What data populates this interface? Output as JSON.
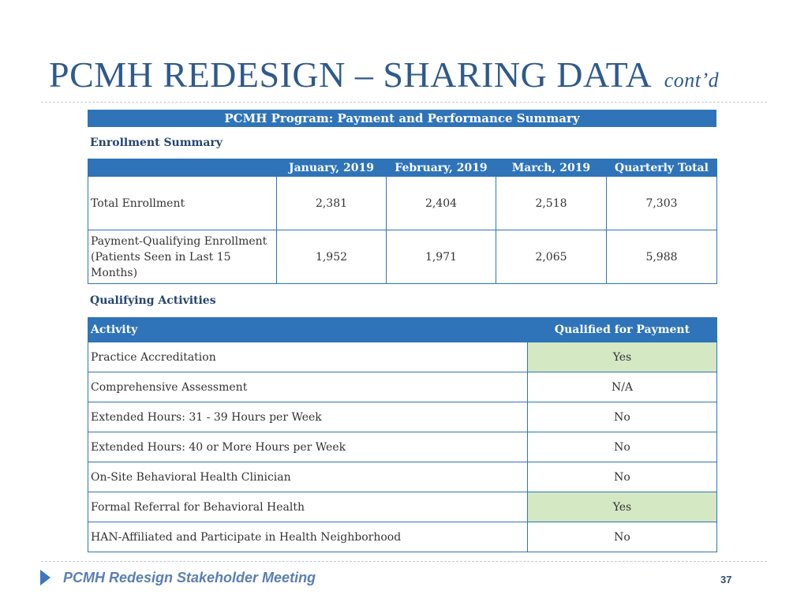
{
  "slide": {
    "title": "PCMH REDESIGN – SHARING DATA",
    "title_suffix": "cont’d",
    "summary_header": "PCMH Program: Payment and Performance Summary"
  },
  "enrollment": {
    "label": "Enrollment Summary",
    "columns": [
      "",
      "January, 2019",
      "February, 2019",
      "March, 2019",
      "Quarterly Total"
    ],
    "rows": [
      {
        "label": "Total Enrollment",
        "values": [
          "2,381",
          "2,404",
          "2,518",
          "7,303"
        ]
      },
      {
        "label": "Payment-Qualifying Enrollment (Patients Seen in Last 15 Months)",
        "values": [
          "1,952",
          "1,971",
          "2,065",
          "5,988"
        ]
      }
    ]
  },
  "qualifying": {
    "label": "Qualifying Activities",
    "columns": [
      "Activity",
      "Qualified for Payment"
    ],
    "rows": [
      {
        "activity": "Practice Accreditation",
        "qualified": "Yes"
      },
      {
        "activity": "Comprehensive Assessment",
        "qualified": "N/A"
      },
      {
        "activity": "Extended Hours: 31 - 39 Hours per Week",
        "qualified": "No"
      },
      {
        "activity": "Extended Hours: 40 or More Hours per Week",
        "qualified": "No"
      },
      {
        "activity": "On-Site Behavioral Health Clinician",
        "qualified": "No"
      },
      {
        "activity": "Formal Referral for Behavioral Health",
        "qualified": "Yes"
      },
      {
        "activity": "HAN-Affiliated and Participate in Health Neighborhood",
        "qualified": "No"
      }
    ]
  },
  "colors": {
    "header_blue": "#2f74b8",
    "title_blue": "#2e5a8c",
    "yes_green": "#d4e8c4"
  },
  "footer": {
    "text": "PCMH Redesign Stakeholder Meeting",
    "page": "37"
  }
}
